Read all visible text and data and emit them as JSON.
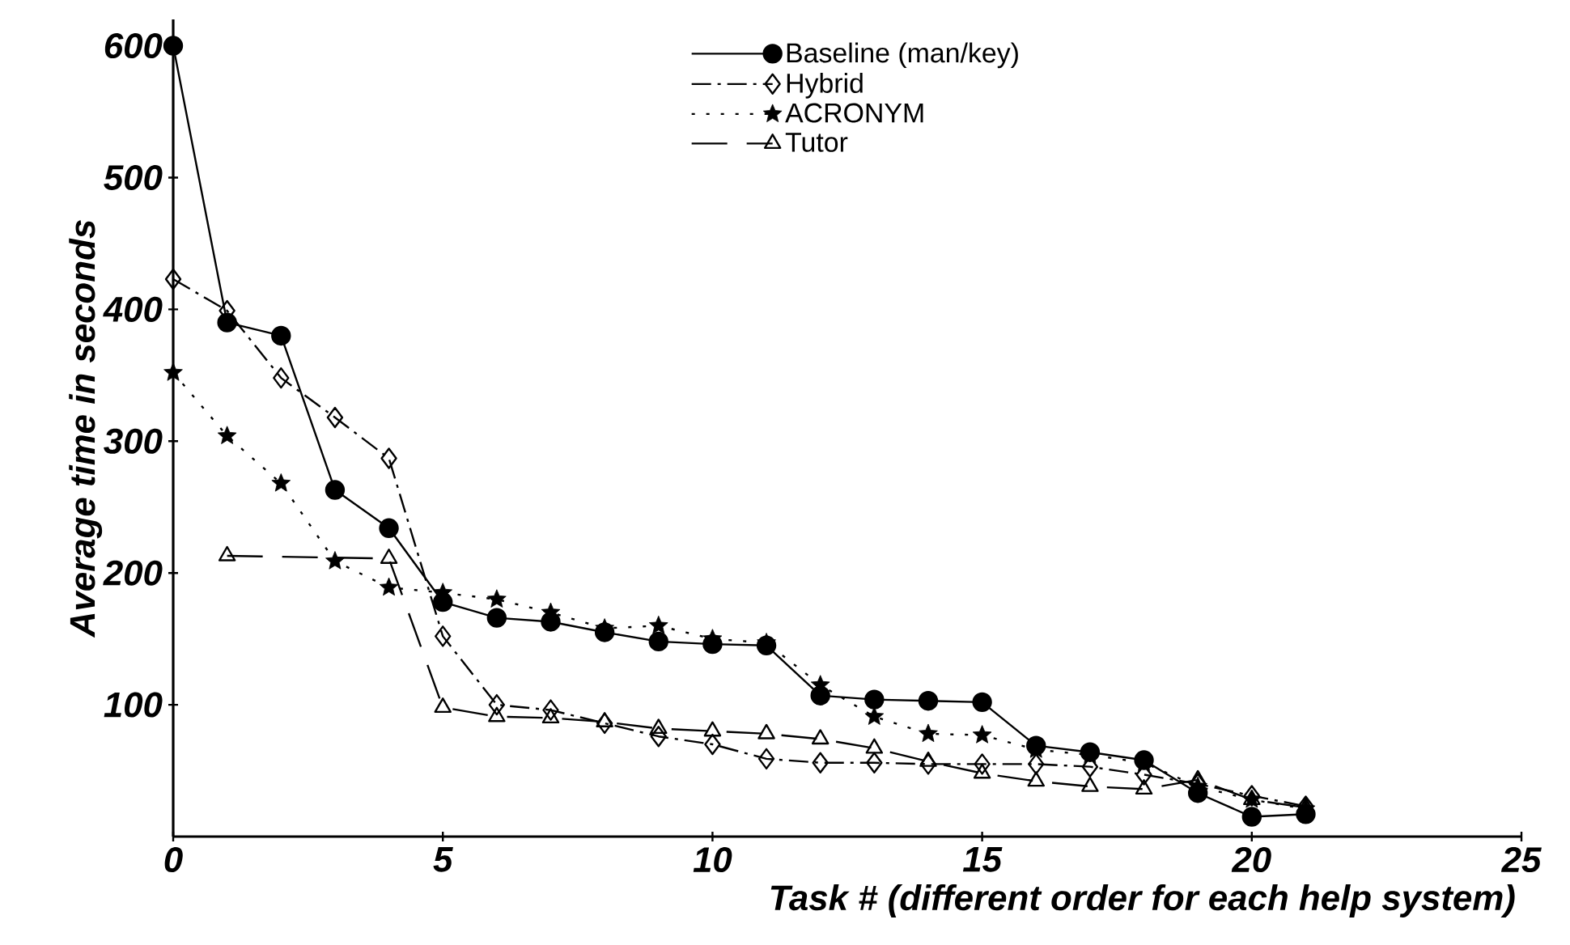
{
  "chart_data": {
    "type": "line",
    "xlabel": "Task # (different order for each help system)",
    "ylabel": "Average time in seconds",
    "x": [
      0,
      1,
      2,
      3,
      4,
      5,
      6,
      7,
      8,
      9,
      10,
      11,
      12,
      13,
      14,
      15,
      16,
      17,
      18,
      19,
      20,
      21
    ],
    "xlim": [
      0,
      25
    ],
    "xticks": [
      0,
      5,
      10,
      15,
      20,
      25
    ],
    "ylim": [
      0,
      620
    ],
    "yticks": [
      100,
      200,
      300,
      400,
      500,
      600
    ],
    "legend": "top",
    "grid": false,
    "series": [
      {
        "name": "Baseline (man/key)",
        "color": "#000000",
        "marker": "circle",
        "line_style": "solid",
        "values": [
          600,
          390,
          380,
          263,
          234,
          178,
          166,
          163,
          155,
          148,
          146,
          145,
          107,
          104,
          103,
          102,
          69,
          64,
          58,
          33,
          15,
          17
        ]
      },
      {
        "name": "Hybrid",
        "color": "#000000",
        "marker": "diamond",
        "line_style": "dashdot",
        "values": [
          423,
          399,
          348,
          318,
          287,
          152,
          100,
          96,
          86,
          76,
          70,
          59,
          56,
          56,
          55,
          55,
          55,
          53,
          47,
          40,
          31,
          23
        ]
      },
      {
        "name": "ACRONYM",
        "color": "#000000",
        "marker": "star",
        "line_style": "dotted",
        "values": [
          352,
          304,
          268,
          209,
          189,
          185,
          180,
          170,
          158,
          160,
          150,
          147,
          115,
          91,
          78,
          77,
          66,
          62,
          56,
          38,
          28,
          21
        ]
      },
      {
        "name": "Tutor",
        "color": "#000000",
        "marker": "triangle",
        "line_style": "dashed",
        "x": [
          1,
          4,
          5,
          6,
          7,
          8,
          9,
          10,
          11,
          12,
          13,
          14,
          15,
          16,
          17,
          18,
          19,
          20,
          21
        ],
        "values": [
          213,
          211,
          98,
          91,
          90,
          87,
          82,
          80,
          78,
          74,
          67,
          57,
          48,
          42,
          38,
          36,
          43,
          28,
          22
        ]
      }
    ]
  }
}
